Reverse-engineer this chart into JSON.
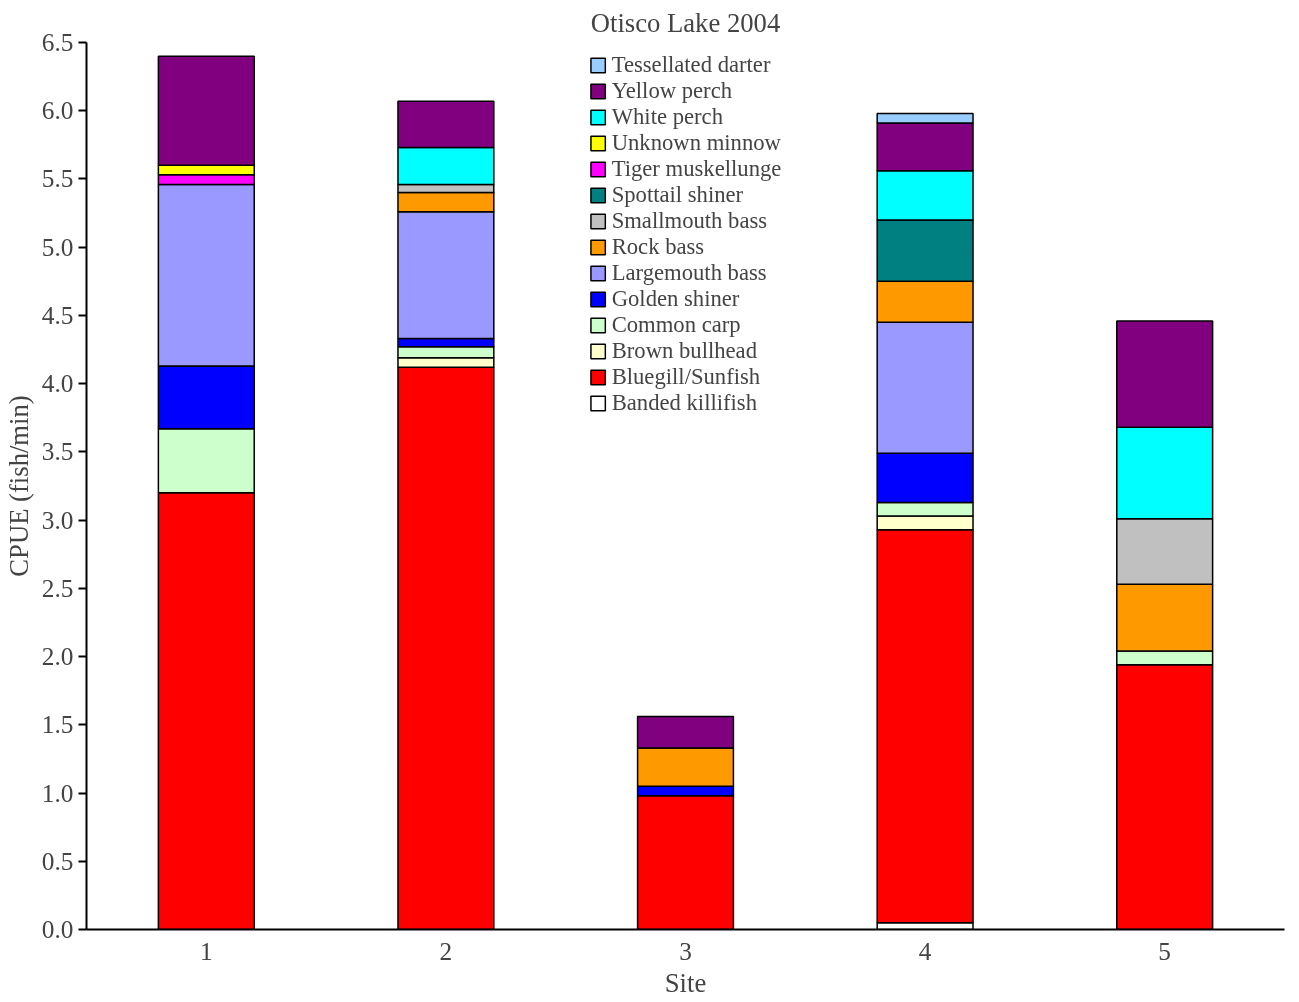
{
  "chart_data": {
    "type": "bar",
    "stacked": true,
    "title": "Otisco Lake 2004",
    "xlabel": "Site",
    "ylabel": "CPUE (fish/min)",
    "categories": [
      "1",
      "2",
      "3",
      "4",
      "5"
    ],
    "ylim": [
      0,
      6.5
    ],
    "yticks": [
      {
        "value": 0,
        "label": "0.0"
      },
      0.5,
      {
        "value": 1,
        "label": "1.0"
      },
      1.5,
      {
        "value": 2,
        "label": "2.0"
      },
      2.5,
      {
        "value": 3,
        "label": "3.0"
      },
      3.5,
      {
        "value": 4,
        "label": "4.0"
      },
      4.5,
      {
        "value": 5,
        "label": "5.0"
      },
      5.5,
      {
        "value": 6,
        "label": "6.0"
      },
      6.5
    ],
    "grid": false,
    "legend": "top",
    "series": [
      {
        "name": "Banded killifish",
        "color": "#ffffff",
        "values": [
          null,
          null,
          null,
          0.05,
          null
        ]
      },
      {
        "name": "Bluegill/Sunfish",
        "color": "#ff0000",
        "values": [
          3.2,
          4.12,
          0.98,
          2.88,
          1.94
        ]
      },
      {
        "name": "Brown bullhead",
        "color": "#ffffcc",
        "values": [
          null,
          0.07,
          null,
          0.1,
          null
        ]
      },
      {
        "name": "Common carp",
        "color": "#ccffcc",
        "values": [
          0.47,
          0.08,
          null,
          0.1,
          0.1
        ]
      },
      {
        "name": "Golden shiner",
        "color": "#0000ff",
        "values": [
          0.46,
          0.06,
          0.07,
          0.36,
          null
        ]
      },
      {
        "name": "Largemouth bass",
        "color": "#9999ff",
        "values": [
          1.33,
          0.93,
          null,
          0.96,
          null
        ]
      },
      {
        "name": "Rock bass",
        "color": "#ff9900",
        "values": [
          null,
          0.14,
          0.28,
          0.3,
          0.49
        ]
      },
      {
        "name": "Smallmouth bass",
        "color": "#c0c0c0",
        "values": [
          null,
          0.06,
          null,
          null,
          0.48
        ]
      },
      {
        "name": "Spottail shiner",
        "color": "#008080",
        "values": [
          null,
          null,
          null,
          0.45,
          null
        ]
      },
      {
        "name": "Tiger muskellunge",
        "color": "#ff00ff",
        "values": [
          0.07,
          null,
          null,
          null,
          null
        ]
      },
      {
        "name": "Unknown minnow",
        "color": "#ffff00",
        "values": [
          0.07,
          null,
          null,
          null,
          null
        ]
      },
      {
        "name": "White perch",
        "color": "#00ffff",
        "values": [
          null,
          0.27,
          null,
          0.36,
          0.67
        ]
      },
      {
        "name": "Yellow perch",
        "color": "#800080",
        "values": [
          0.8,
          0.34,
          0.23,
          0.35,
          0.78
        ]
      },
      {
        "name": "Tessellated darter",
        "color": "#99ccff",
        "values": [
          null,
          null,
          null,
          0.07,
          null
        ]
      }
    ]
  }
}
